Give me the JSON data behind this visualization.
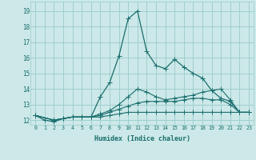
{
  "xlabel": "Humidex (Indice chaleur)",
  "ylabel": "",
  "bg_color": "#cce8e8",
  "grid_color": "#99cccc",
  "line_color": "#1a6e6e",
  "xlim": [
    -0.5,
    23.5
  ],
  "ylim": [
    11.7,
    19.6
  ],
  "xticks": [
    0,
    1,
    2,
    3,
    4,
    5,
    6,
    7,
    8,
    9,
    10,
    11,
    12,
    13,
    14,
    15,
    16,
    17,
    18,
    19,
    20,
    21,
    22,
    23
  ],
  "yticks": [
    12,
    13,
    14,
    15,
    16,
    17,
    18,
    19
  ],
  "series1_x": [
    0,
    1,
    2,
    3,
    4,
    5,
    6,
    7,
    8,
    9,
    10,
    11,
    12,
    13,
    14,
    15,
    16,
    17,
    18,
    19,
    20,
    21,
    22,
    23
  ],
  "series1_y": [
    12.3,
    12.0,
    11.9,
    12.1,
    12.2,
    12.2,
    12.2,
    13.5,
    14.4,
    16.1,
    18.5,
    19.0,
    16.4,
    15.5,
    15.3,
    15.9,
    15.4,
    15.0,
    14.7,
    13.9,
    13.4,
    13.2,
    12.5,
    12.5
  ],
  "series2_x": [
    0,
    2,
    3,
    4,
    5,
    6,
    7,
    8,
    9,
    10,
    11,
    12,
    13,
    14,
    15,
    16,
    17,
    18,
    19,
    20,
    21,
    22,
    23
  ],
  "series2_y": [
    12.3,
    12.0,
    12.1,
    12.2,
    12.2,
    12.2,
    12.4,
    12.6,
    13.0,
    13.5,
    14.0,
    13.8,
    13.5,
    13.3,
    13.4,
    13.5,
    13.6,
    13.8,
    13.9,
    14.0,
    13.3,
    12.5,
    12.5
  ],
  "series3_x": [
    0,
    2,
    3,
    4,
    5,
    6,
    7,
    8,
    9,
    10,
    11,
    12,
    13,
    14,
    15,
    16,
    17,
    18,
    19,
    20,
    21,
    22,
    23
  ],
  "series3_y": [
    12.3,
    12.0,
    12.1,
    12.2,
    12.2,
    12.2,
    12.3,
    12.5,
    12.7,
    12.9,
    13.1,
    13.2,
    13.2,
    13.2,
    13.2,
    13.3,
    13.4,
    13.4,
    13.3,
    13.3,
    13.0,
    12.5,
    12.5
  ],
  "series4_x": [
    0,
    2,
    3,
    4,
    5,
    6,
    7,
    8,
    9,
    10,
    11,
    12,
    13,
    14,
    15,
    16,
    17,
    18,
    19,
    20,
    21,
    22,
    23
  ],
  "series4_y": [
    12.3,
    12.0,
    12.1,
    12.2,
    12.2,
    12.2,
    12.2,
    12.3,
    12.4,
    12.5,
    12.5,
    12.5,
    12.5,
    12.5,
    12.5,
    12.5,
    12.5,
    12.5,
    12.5,
    12.5,
    12.5,
    12.5,
    12.5
  ]
}
